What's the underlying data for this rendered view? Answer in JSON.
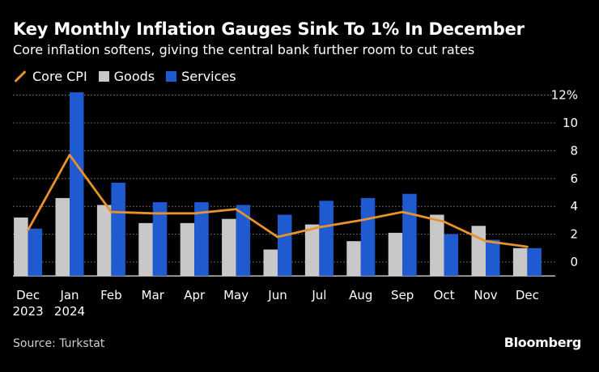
{
  "header": {
    "title": "Key Monthly Inflation Gauges Sink To 1% In December",
    "subtitle": "Core inflation softens, giving the central bank further room to cut rates"
  },
  "colors": {
    "core": "#e8912d",
    "goods": "#c8c8c8",
    "services": "#1f5ad1",
    "grid": "#666666",
    "axis_text": "#ffffff"
  },
  "chart_data": {
    "type": "bar",
    "categories": [
      "Dec\n2023",
      "Jan\n2024",
      "Feb",
      "Mar",
      "Apr",
      "May",
      "Jun",
      "Jul",
      "Aug",
      "Sep",
      "Oct",
      "Nov",
      "Dec"
    ],
    "series": [
      {
        "name": "Goods",
        "kind": "bar",
        "values": [
          3.2,
          4.6,
          4.1,
          2.8,
          2.8,
          3.1,
          0.9,
          2.7,
          1.5,
          2.1,
          3.4,
          2.6,
          1.0
        ]
      },
      {
        "name": "Services",
        "kind": "bar",
        "values": [
          2.4,
          12.2,
          5.7,
          4.3,
          4.3,
          4.1,
          3.4,
          4.4,
          4.6,
          4.9,
          2.0,
          1.6,
          1.0
        ]
      },
      {
        "name": "Core CPI",
        "kind": "line",
        "values": [
          2.3,
          7.7,
          3.6,
          3.5,
          3.5,
          3.8,
          1.8,
          2.5,
          3.0,
          3.6,
          2.9,
          1.5,
          1.1
        ]
      }
    ],
    "y_ticks": [
      "0",
      "2",
      "4",
      "6",
      "8",
      "10",
      "12%"
    ],
    "ylim": [
      -1,
      13
    ],
    "legend": [
      "Core CPI",
      "Goods",
      "Services"
    ]
  },
  "footer": {
    "source": "Source: Turkstat",
    "brand": "Bloomberg"
  }
}
